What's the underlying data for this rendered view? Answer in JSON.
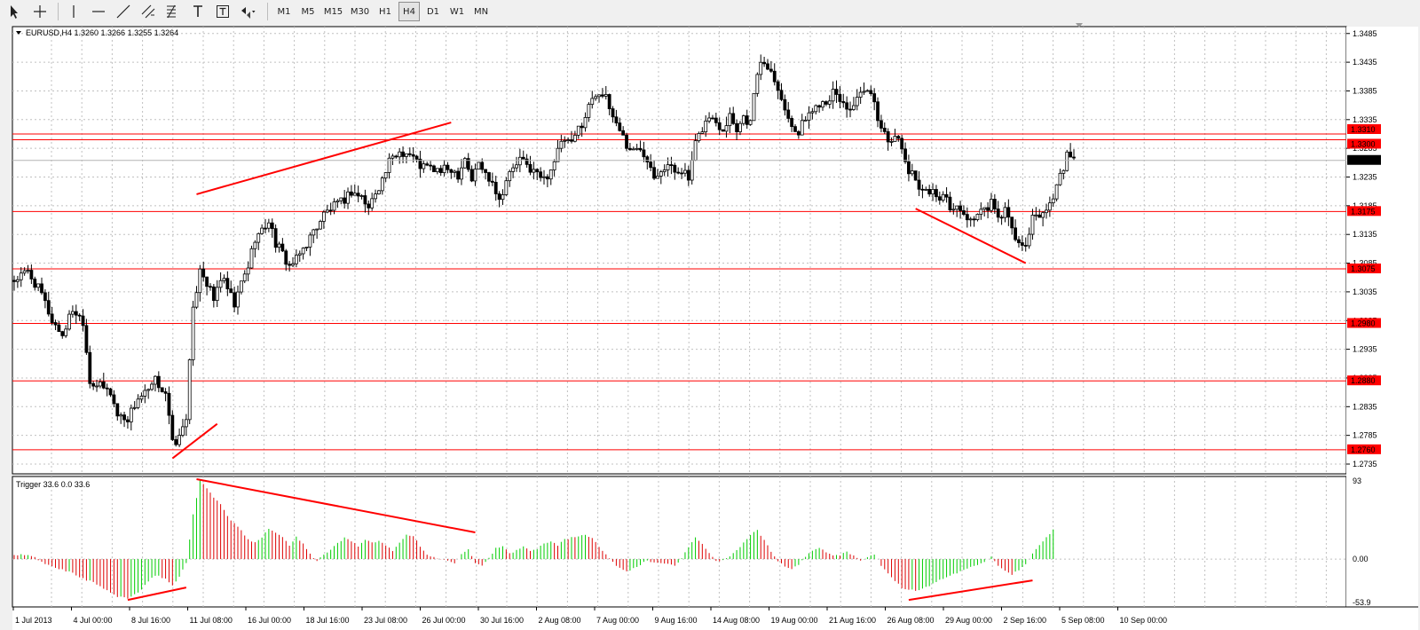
{
  "toolbar": {
    "items": [
      {
        "kind": "icon",
        "name": "cursor-icon"
      },
      {
        "kind": "icon",
        "name": "crosshair-icon"
      },
      {
        "kind": "sep"
      },
      {
        "kind": "icon",
        "name": "vertical-line-icon"
      },
      {
        "kind": "icon",
        "name": "horizontal-line-icon"
      },
      {
        "kind": "icon",
        "name": "trendline-icon"
      },
      {
        "kind": "icon",
        "name": "equidistant-channel-icon"
      },
      {
        "kind": "icon",
        "name": "fibonacci-icon"
      },
      {
        "kind": "icon",
        "name": "text-icon"
      },
      {
        "kind": "icon",
        "name": "text-label-icon"
      },
      {
        "kind": "icon",
        "name": "arrows-dropdown-icon"
      },
      {
        "kind": "sep"
      },
      {
        "kind": "tf",
        "label": "M1"
      },
      {
        "kind": "tf",
        "label": "M5"
      },
      {
        "kind": "tf",
        "label": "M15"
      },
      {
        "kind": "tf",
        "label": "M30"
      },
      {
        "kind": "tf",
        "label": "H1"
      },
      {
        "kind": "tf",
        "label": "H4",
        "active": true
      },
      {
        "kind": "tf",
        "label": "D1"
      },
      {
        "kind": "tf",
        "label": "W1"
      },
      {
        "kind": "tf",
        "label": "MN"
      }
    ]
  },
  "chart_data": [
    {
      "type": "candlestick",
      "title": "EURUSD,H4 1.3260 1.3266 1.3255 1.3264",
      "symbol": "EURUSD,H4",
      "ohlc_text": "1.3260 1.3266 1.3255 1.3264",
      "ylim": [
        1.2718,
        1.3497
      ],
      "y_ticks": [
        "1.3485",
        "1.3435",
        "1.3385",
        "1.3335",
        "1.3285",
        "1.3235",
        "1.3185",
        "1.3135",
        "1.3085",
        "1.3035",
        "1.2985",
        "1.2935",
        "1.2885",
        "1.2835",
        "1.2785",
        "1.2735"
      ],
      "x_ticks": [
        "1 Jul 2013",
        "4 Jul 00:00",
        "8 Jul 16:00",
        "11 Jul 08:00",
        "16 Jul 00:00",
        "18 Jul 16:00",
        "23 Jul 08:00",
        "26 Jul 00:00",
        "30 Jul 16:00",
        "2 Aug 08:00",
        "7 Aug 00:00",
        "9 Aug 16:00",
        "14 Aug 08:00",
        "19 Aug 00:00",
        "21 Aug 16:00",
        "26 Aug 08:00",
        "29 Aug 00:00",
        "2 Sep 16:00",
        "5 Sep 08:00",
        "10 Sep 00:00"
      ],
      "close_path_bar_units": [
        [
          0,
          1.3055
        ],
        [
          4,
          1.307
        ],
        [
          8,
          1.303
        ],
        [
          11,
          1.2985
        ],
        [
          14,
          1.296
        ],
        [
          17,
          1.3005
        ],
        [
          20,
          1.2985
        ],
        [
          22,
          1.288
        ],
        [
          25,
          1.287
        ],
        [
          28,
          1.286
        ],
        [
          30,
          1.282
        ],
        [
          33,
          1.2815
        ],
        [
          36,
          1.285
        ],
        [
          39,
          1.286
        ],
        [
          41,
          1.288
        ],
        [
          44,
          1.286
        ],
        [
          46,
          1.277
        ],
        [
          48,
          1.278
        ],
        [
          50,
          1.282
        ],
        [
          52,
          1.3
        ],
        [
          54,
          1.308
        ],
        [
          56,
          1.305
        ],
        [
          58,
          1.302
        ],
        [
          60,
          1.306
        ],
        [
          62,
          1.304
        ],
        [
          64,
          1.301
        ],
        [
          66,
          1.305
        ],
        [
          68,
          1.308
        ],
        [
          70,
          1.313
        ],
        [
          72,
          1.314
        ],
        [
          74,
          1.316
        ],
        [
          76,
          1.312
        ],
        [
          78,
          1.31
        ],
        [
          80,
          1.308
        ],
        [
          82,
          1.309
        ],
        [
          84,
          1.311
        ],
        [
          86,
          1.313
        ],
        [
          88,
          1.315
        ],
        [
          90,
          1.317
        ],
        [
          92,
          1.318
        ],
        [
          95,
          1.319
        ],
        [
          98,
          1.321
        ],
        [
          101,
          1.32
        ],
        [
          103,
          1.318
        ],
        [
          105,
          1.321
        ],
        [
          107,
          1.323
        ],
        [
          109,
          1.326
        ],
        [
          112,
          1.328
        ],
        [
          115,
          1.3275
        ],
        [
          118,
          1.3255
        ],
        [
          121,
          1.325
        ],
        [
          124,
          1.3245
        ],
        [
          127,
          1.325
        ],
        [
          129,
          1.324
        ],
        [
          131,
          1.327
        ],
        [
          133,
          1.323
        ],
        [
          135,
          1.326
        ],
        [
          137,
          1.324
        ],
        [
          139,
          1.323
        ],
        [
          141,
          1.3195
        ],
        [
          143,
          1.323
        ],
        [
          145,
          1.325
        ],
        [
          147,
          1.3265
        ],
        [
          150,
          1.325
        ],
        [
          152,
          1.324
        ],
        [
          154,
          1.323
        ],
        [
          156,
          1.325
        ],
        [
          158,
          1.328
        ],
        [
          160,
          1.33
        ],
        [
          162,
          1.329
        ],
        [
          164,
          1.332
        ],
        [
          166,
          1.334
        ],
        [
          168,
          1.3375
        ],
        [
          170,
          1.3385
        ],
        [
          172,
          1.337
        ],
        [
          174,
          1.334
        ],
        [
          176,
          1.332
        ],
        [
          178,
          1.329
        ],
        [
          180,
          1.328
        ],
        [
          182,
          1.3285
        ],
        [
          184,
          1.327
        ],
        [
          186,
          1.324
        ],
        [
          188,
          1.325
        ],
        [
          190,
          1.3255
        ],
        [
          192,
          1.3245
        ],
        [
          194,
          1.325
        ],
        [
          196,
          1.323
        ],
        [
          198,
          1.329
        ],
        [
          200,
          1.332
        ],
        [
          202,
          1.334
        ],
        [
          204,
          1.333
        ],
        [
          206,
          1.332
        ],
        [
          208,
          1.3345
        ],
        [
          210,
          1.332
        ],
        [
          212,
          1.334
        ],
        [
          214,
          1.333
        ],
        [
          216,
          1.342
        ],
        [
          218,
          1.3435
        ],
        [
          220,
          1.342
        ],
        [
          222,
          1.3395
        ],
        [
          224,
          1.335
        ],
        [
          226,
          1.333
        ],
        [
          228,
          1.331
        ],
        [
          230,
          1.334
        ],
        [
          232,
          1.335
        ],
        [
          234,
          1.3365
        ],
        [
          236,
          1.337
        ],
        [
          238,
          1.338
        ],
        [
          240,
          1.337
        ],
        [
          242,
          1.3355
        ],
        [
          244,
          1.336
        ],
        [
          246,
          1.3375
        ],
        [
          248,
          1.3385
        ],
        [
          250,
          1.336
        ],
        [
          252,
          1.332
        ],
        [
          254,
          1.33
        ],
        [
          256,
          1.331
        ],
        [
          258,
          1.328
        ],
        [
          260,
          1.3245
        ],
        [
          262,
          1.323
        ],
        [
          264,
          1.3215
        ],
        [
          266,
          1.321
        ],
        [
          268,
          1.3205
        ],
        [
          270,
          1.32
        ],
        [
          272,
          1.3185
        ],
        [
          274,
          1.318
        ],
        [
          276,
          1.317
        ],
        [
          278,
          1.316
        ],
        [
          280,
          1.317
        ],
        [
          282,
          1.3175
        ],
        [
          284,
          1.319
        ],
        [
          286,
          1.316
        ],
        [
          288,
          1.318
        ],
        [
          290,
          1.314
        ],
        [
          292,
          1.312
        ],
        [
          294,
          1.311
        ],
        [
          296,
          1.316
        ],
        [
          298,
          1.317
        ],
        [
          300,
          1.3175
        ],
        [
          302,
          1.32
        ],
        [
          304,
          1.324
        ],
        [
          306,
          1.327
        ],
        [
          308,
          1.3264
        ]
      ],
      "horizontal_levels": [
        1.331,
        1.33,
        1.3175,
        1.3075,
        1.298,
        1.288,
        1.276
      ],
      "level_labels": [
        "1.3310",
        "1.3300",
        "1.3175",
        "1.3075",
        "1.2980",
        "1.2880",
        "1.2760"
      ],
      "current_price_label": "1.3264",
      "trendlines": [
        [
          [
            46,
            1.2745
          ],
          [
            59,
            1.2805
          ]
        ],
        [
          [
            53,
            1.3205
          ],
          [
            127,
            1.333
          ]
        ],
        [
          [
            262,
            1.318
          ],
          [
            294,
            1.3085
          ]
        ]
      ],
      "grid": true,
      "colors": {
        "up": "#000000",
        "down": "#000000",
        "up_fill": "#ffffff",
        "down_fill": "#000000",
        "level": "#ff0000",
        "trend": "#ff0000",
        "label_bg": "#ff0000",
        "current_bg": "#000000",
        "grid": "#c0c0c0"
      }
    },
    {
      "type": "histogram",
      "indicator": "Trigger",
      "title": "Trigger 33.6 0.0 33.6",
      "ylim": [
        -53.9,
        93
      ],
      "y_ticks": [
        "93",
        "0.00",
        "-53.9"
      ],
      "value_path_bar_units": [
        [
          0,
          5
        ],
        [
          5,
          4
        ],
        [
          8,
          -4
        ],
        [
          12,
          -10
        ],
        [
          16,
          -14
        ],
        [
          20,
          -22
        ],
        [
          24,
          -28
        ],
        [
          27,
          -36
        ],
        [
          30,
          -42
        ],
        [
          33,
          -44
        ],
        [
          36,
          -38
        ],
        [
          39,
          -26
        ],
        [
          41,
          -18
        ],
        [
          44,
          -22
        ],
        [
          46,
          -30
        ],
        [
          48,
          -20
        ],
        [
          50,
          -4
        ],
        [
          52,
          50
        ],
        [
          54,
          88
        ],
        [
          56,
          80
        ],
        [
          58,
          70
        ],
        [
          60,
          62
        ],
        [
          62,
          48
        ],
        [
          64,
          40
        ],
        [
          66,
          32
        ],
        [
          68,
          22
        ],
        [
          70,
          18
        ],
        [
          72,
          25
        ],
        [
          74,
          35
        ],
        [
          76,
          30
        ],
        [
          78,
          25
        ],
        [
          80,
          15
        ],
        [
          82,
          25
        ],
        [
          84,
          18
        ],
        [
          86,
          6
        ],
        [
          88,
          -2
        ],
        [
          90,
          5
        ],
        [
          92,
          10
        ],
        [
          94,
          18
        ],
        [
          96,
          24
        ],
        [
          98,
          20
        ],
        [
          100,
          15
        ],
        [
          102,
          22
        ],
        [
          104,
          18
        ],
        [
          106,
          20
        ],
        [
          108,
          15
        ],
        [
          110,
          10
        ],
        [
          112,
          18
        ],
        [
          114,
          28
        ],
        [
          116,
          26
        ],
        [
          118,
          14
        ],
        [
          120,
          5
        ],
        [
          122,
          2
        ],
        [
          124,
          0
        ],
        [
          126,
          -2
        ],
        [
          128,
          -4
        ],
        [
          130,
          6
        ],
        [
          132,
          12
        ],
        [
          134,
          -4
        ],
        [
          136,
          -8
        ],
        [
          138,
          2
        ],
        [
          140,
          12
        ],
        [
          142,
          14
        ],
        [
          144,
          6
        ],
        [
          146,
          10
        ],
        [
          148,
          14
        ],
        [
          150,
          10
        ],
        [
          152,
          12
        ],
        [
          154,
          18
        ],
        [
          156,
          20
        ],
        [
          158,
          16
        ],
        [
          160,
          22
        ],
        [
          162,
          24
        ],
        [
          164,
          26
        ],
        [
          166,
          28
        ],
        [
          168,
          24
        ],
        [
          170,
          14
        ],
        [
          172,
          6
        ],
        [
          174,
          -4
        ],
        [
          176,
          -10
        ],
        [
          178,
          -14
        ],
        [
          180,
          -10
        ],
        [
          182,
          -6
        ],
        [
          184,
          -2
        ],
        [
          186,
          -4
        ],
        [
          188,
          -4
        ],
        [
          190,
          -6
        ],
        [
          192,
          -8
        ],
        [
          194,
          0
        ],
        [
          196,
          14
        ],
        [
          198,
          24
        ],
        [
          200,
          18
        ],
        [
          202,
          6
        ],
        [
          204,
          -2
        ],
        [
          206,
          -2
        ],
        [
          208,
          4
        ],
        [
          210,
          10
        ],
        [
          212,
          18
        ],
        [
          214,
          28
        ],
        [
          216,
          32
        ],
        [
          218,
          22
        ],
        [
          220,
          8
        ],
        [
          222,
          -2
        ],
        [
          224,
          -8
        ],
        [
          226,
          -12
        ],
        [
          228,
          -6
        ],
        [
          230,
          2
        ],
        [
          232,
          10
        ],
        [
          234,
          12
        ],
        [
          236,
          8
        ],
        [
          238,
          4
        ],
        [
          240,
          4
        ],
        [
          242,
          8
        ],
        [
          244,
          4
        ],
        [
          246,
          -2
        ],
        [
          248,
          2
        ],
        [
          250,
          6
        ],
        [
          252,
          -8
        ],
        [
          254,
          -16
        ],
        [
          256,
          -24
        ],
        [
          258,
          -32
        ],
        [
          260,
          -34
        ],
        [
          262,
          -36
        ],
        [
          264,
          -34
        ],
        [
          266,
          -30
        ],
        [
          268,
          -26
        ],
        [
          270,
          -22
        ],
        [
          272,
          -18
        ],
        [
          274,
          -16
        ],
        [
          276,
          -12
        ],
        [
          278,
          -8
        ],
        [
          280,
          -6
        ],
        [
          282,
          -4
        ],
        [
          284,
          2
        ],
        [
          286,
          -8
        ],
        [
          288,
          -14
        ],
        [
          290,
          -18
        ],
        [
          292,
          -12
        ],
        [
          294,
          -6
        ],
        [
          296,
          6
        ],
        [
          298,
          16
        ],
        [
          300,
          24
        ],
        [
          302,
          33.6
        ]
      ],
      "trendlines": [
        [
          [
            33,
            -46
          ],
          [
            50,
            -32
          ]
        ],
        [
          [
            53,
            90
          ],
          [
            134,
            30
          ]
        ],
        [
          [
            260,
            -46
          ],
          [
            296,
            -24
          ]
        ]
      ],
      "colors": {
        "rising": "#00cc00",
        "falling": "#dd0000",
        "trend": "#ff0000"
      }
    }
  ]
}
